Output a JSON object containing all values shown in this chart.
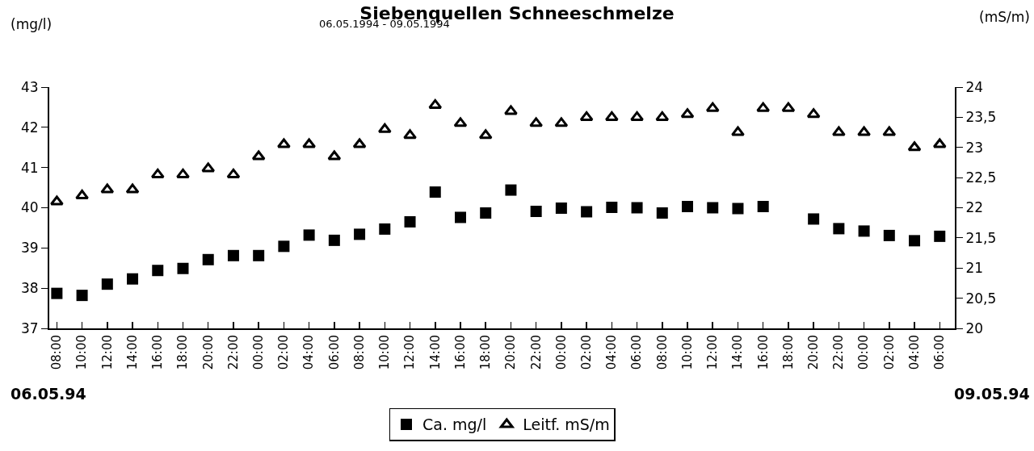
{
  "chart_data": {
    "type": "scatter",
    "title": "Siebenquellen Schneeschmelze",
    "subtitle": "06.05.1994 - 09.05.1994",
    "ylabel": "(mg/l)",
    "y2label": "(mS/m)",
    "categories": [
      "08:00",
      "10:00",
      "12:00",
      "14:00",
      "16:00",
      "18:00",
      "20:00",
      "22:00",
      "00:00",
      "02:00",
      "04:00",
      "06:00",
      "08:00",
      "10:00",
      "12:00",
      "14:00",
      "16:00",
      "18:00",
      "20:00",
      "22:00",
      "00:00",
      "02:00",
      "04:00",
      "06:00",
      "08:00",
      "10:00",
      "12:00",
      "14:00",
      "16:00",
      "18:00",
      "20:00",
      "22:00",
      "00:00",
      "02:00",
      "04:00",
      "06:00"
    ],
    "series": [
      {
        "name": "Ca. mg/l",
        "color": "#000000",
        "marker": "square",
        "values": [
          37.87,
          37.82,
          38.1,
          38.23,
          38.44,
          38.49,
          38.71,
          38.81,
          38.81,
          39.04,
          39.32,
          39.19,
          39.34,
          39.47,
          39.65,
          40.39,
          39.76,
          39.87,
          40.44,
          39.91,
          39.99,
          39.9,
          40.01,
          40.0,
          39.87,
          40.03,
          40.0,
          39.98,
          40.03,
          null,
          39.72,
          39.48,
          39.42,
          39.31,
          39.18,
          39.29
        ]
      },
      {
        "name": "Leitf. mS/m",
        "color": "#000000",
        "marker": "triangle",
        "axis": "y2",
        "values": [
          22.1,
          22.2,
          22.3,
          22.3,
          22.55,
          22.55,
          22.65,
          22.55,
          22.85,
          23.05,
          23.05,
          22.85,
          23.05,
          23.3,
          23.2,
          23.7,
          23.4,
          23.2,
          23.6,
          23.4,
          23.4,
          23.5,
          23.5,
          23.5,
          23.5,
          23.55,
          23.65,
          23.25,
          23.65,
          23.65,
          23.55,
          23.25,
          23.25,
          23.25,
          23.0,
          23.05
        ]
      }
    ],
    "ylim": [
      37,
      43
    ],
    "yticks": [
      37,
      38,
      39,
      40,
      41,
      42,
      43
    ],
    "y2lim": [
      20,
      24
    ],
    "y2ticks": [
      20,
      {
        "value": 20.5,
        "label": "20,5"
      },
      21,
      {
        "value": 21.5,
        "label": "21,5"
      },
      22,
      {
        "value": 22.5,
        "label": "22,5"
      },
      23,
      {
        "value": 23.5,
        "label": "23,5"
      },
      24
    ],
    "grid": false,
    "legend": "bottom",
    "annotations": [
      "06.05.94",
      "09.05.94"
    ]
  }
}
